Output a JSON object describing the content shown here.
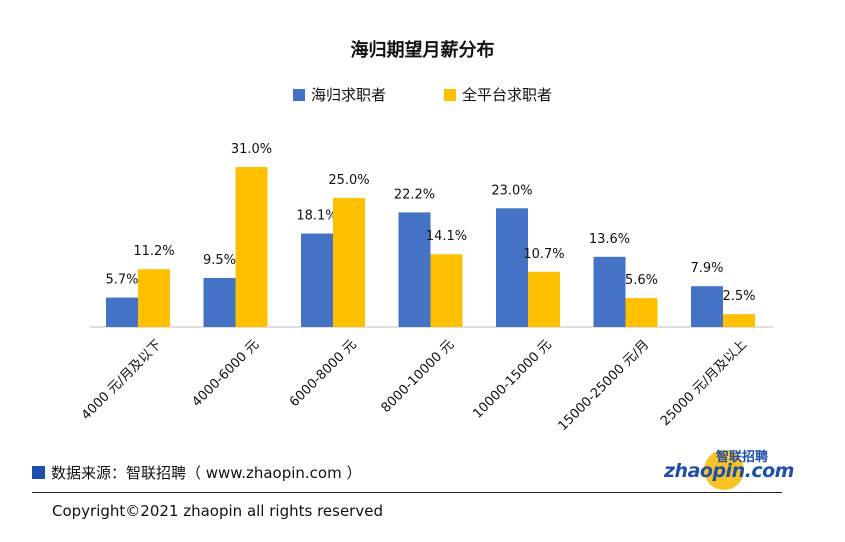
{
  "chart_data": {
    "type": "bar",
    "title": "海归期望月薪分布",
    "categories": [
      "4000 元/月及以下",
      "4000-6000 元",
      "6000-8000 元",
      "8000-10000 元",
      "10000-15000 元",
      "15000-25000 元/月",
      "25000 元/月及以上"
    ],
    "series": [
      {
        "name": "海归求职者",
        "color": "#4472c4",
        "values": [
          5.7,
          9.5,
          18.1,
          22.2,
          23.0,
          13.6,
          7.9
        ],
        "labels": [
          "5.7%",
          "9.5%",
          "18.1%",
          "22.2%",
          "23.0%",
          "13.6%",
          "7.9%"
        ]
      },
      {
        "name": "全平台求职者",
        "color": "#ffc000",
        "values": [
          11.2,
          31.0,
          25.0,
          14.1,
          10.7,
          5.6,
          2.5
        ],
        "labels": [
          "11.2%",
          "31.0%",
          "25.0%",
          "14.1%",
          "10.7%",
          "5.6%",
          "2.5%"
        ]
      }
    ],
    "xlabel": "",
    "ylabel": "",
    "ylim": [
      0,
      31
    ],
    "grid": false,
    "legend": "top"
  },
  "source": "数据来源：智联招聘（ www.zhaopin.com ）",
  "copyright": "Copyright©2021 zhaopin all rights reserved",
  "logo": {
    "latin": "zhaopin.com",
    "cn": "智联招聘",
    "color": "#1f4fa8",
    "accent": "#f7c325"
  }
}
